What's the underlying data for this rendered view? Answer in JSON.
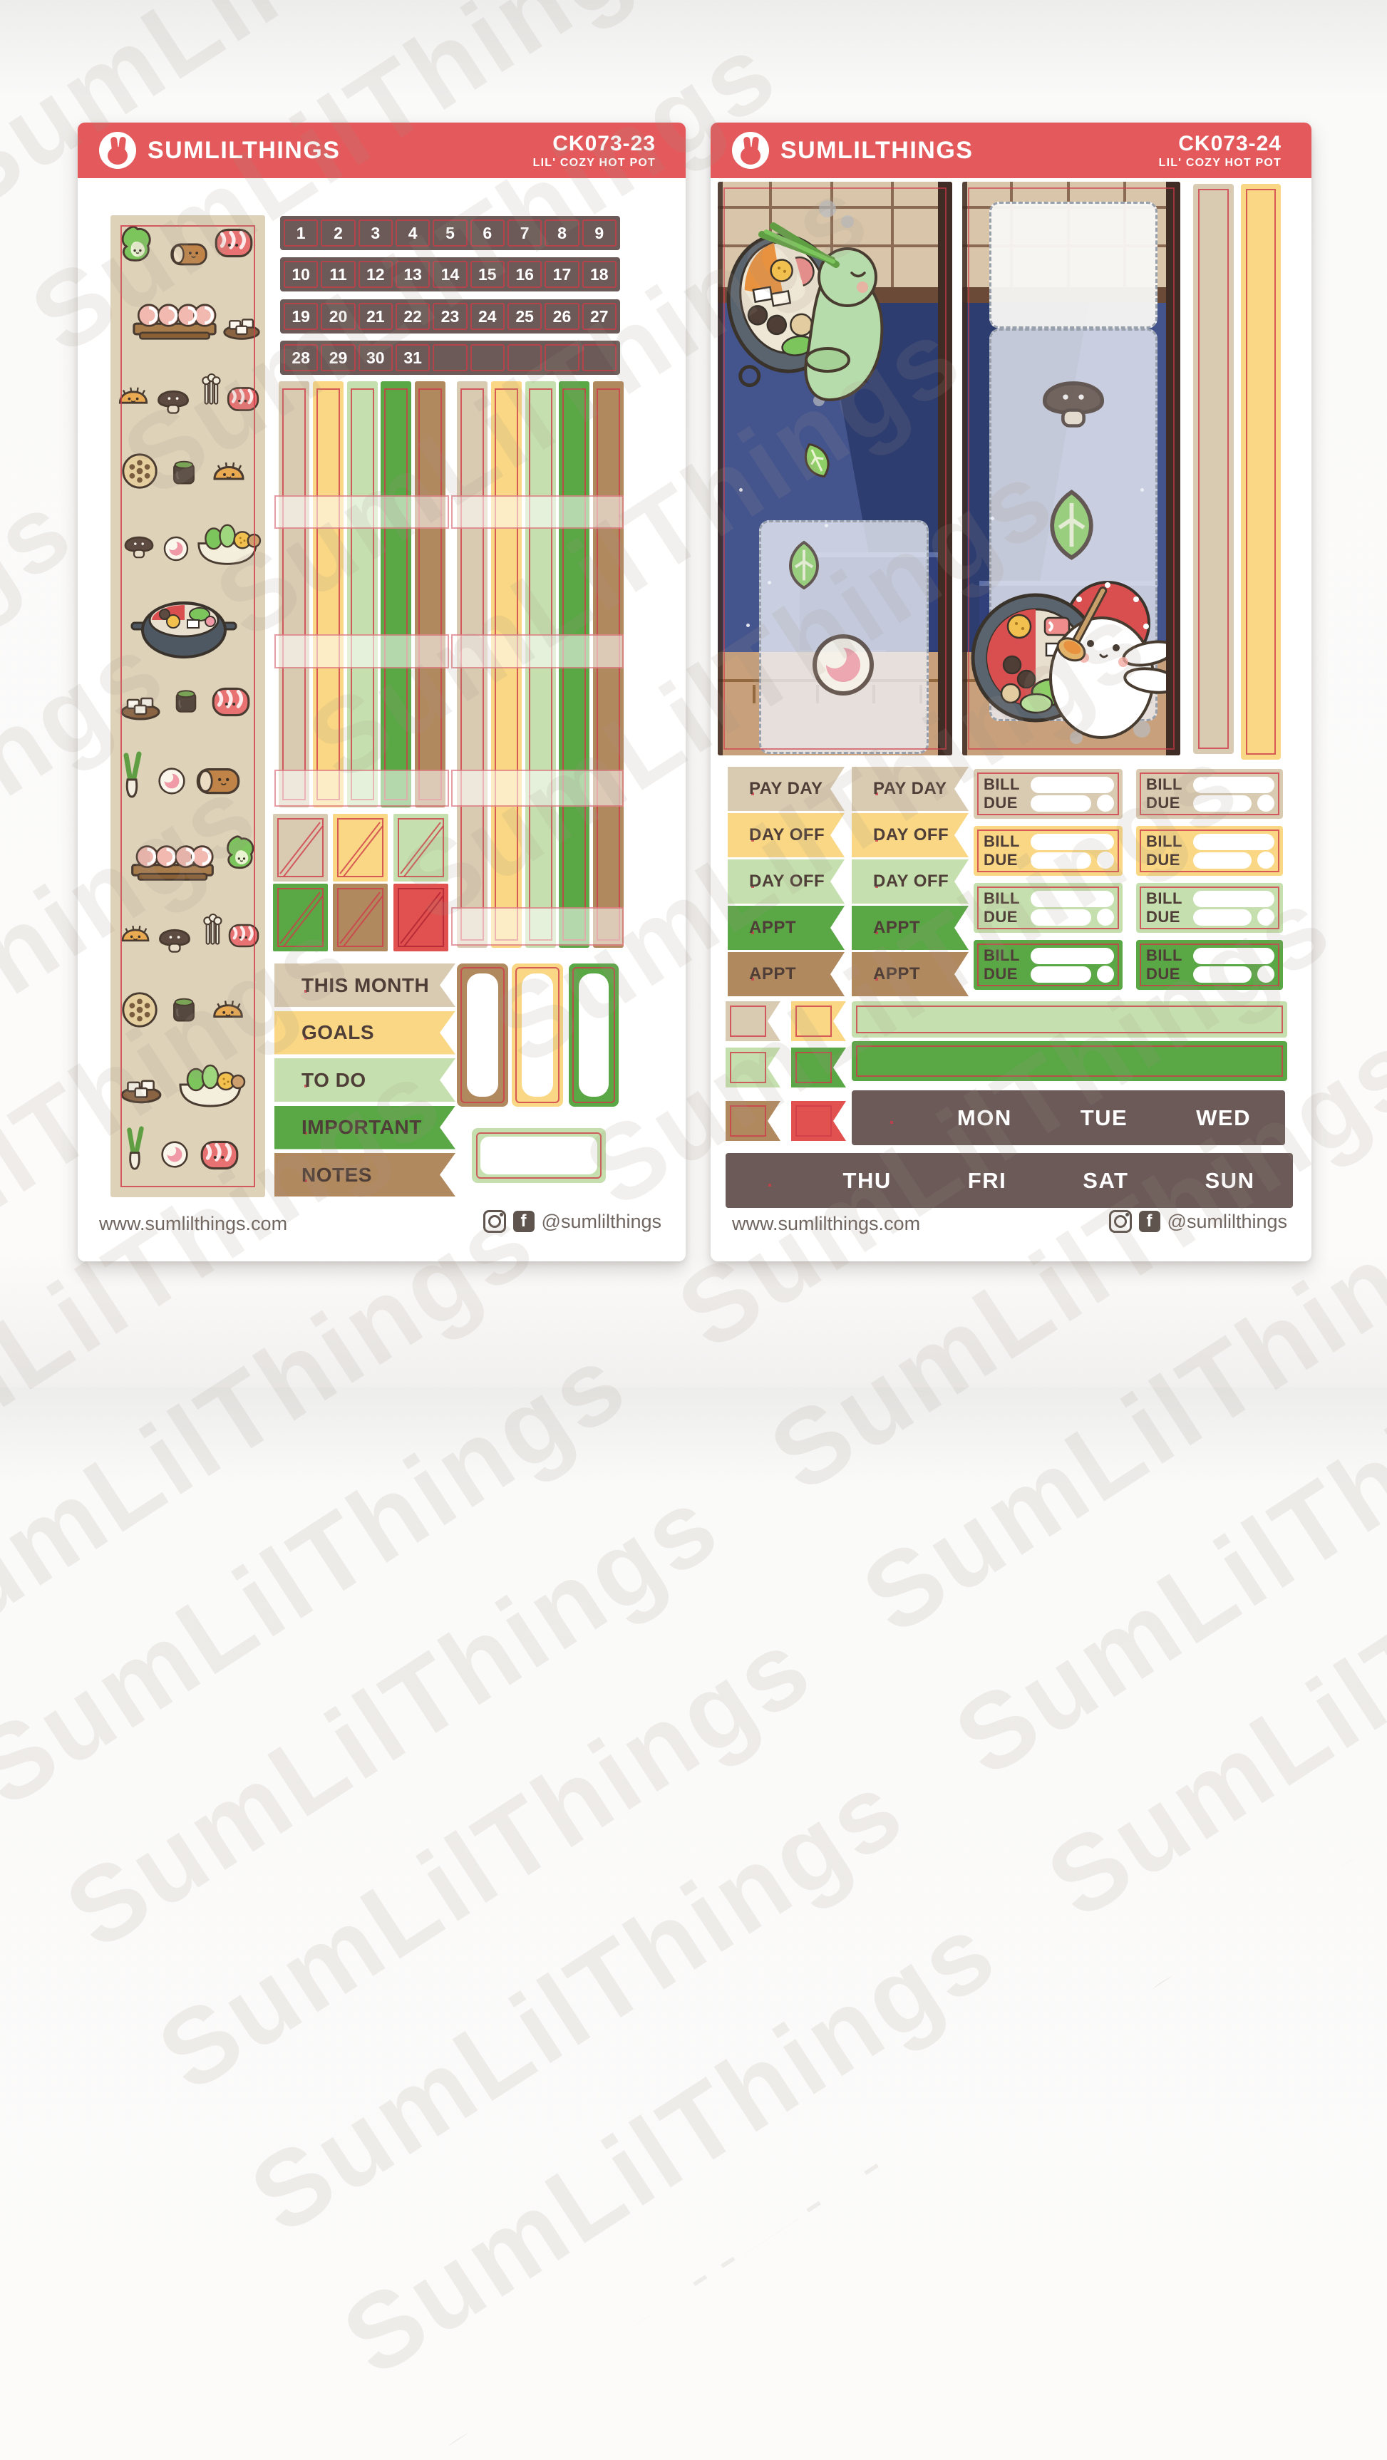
{
  "brand": "SUMLILTHINGS",
  "subtitle": "LIL' COZY HOT POT",
  "watermark": "SumLilThings",
  "logo_icon": "bunny",
  "footer": {
    "website": "www.sumlilthings.com",
    "handle": "@sumlilthings",
    "icons": [
      "instagram",
      "facebook"
    ]
  },
  "colors": {
    "header": "#e4595b",
    "cutline": "#ce3c48",
    "taupe": "#6b5a58",
    "tan": "#d9cbb2",
    "yellow": "#f9d784",
    "ltgreen": "#c5e0ae",
    "green": "#5aa746",
    "brown": "#b1895f",
    "red": "#e0514f",
    "washi": "#ded2b9",
    "textdark": "#4e3e37",
    "footer": "#6f6560",
    "navy": "#2d3d6f",
    "beamblue": "#4c5c97",
    "shoji": "#d9c6aa",
    "shojiline": "#8a6a52",
    "beamdark": "#6b4a38",
    "pillar": "#3f2c25",
    "floor": "#c8a07c",
    "floorline": "#92683f"
  },
  "sheet_left": {
    "code": "CK073-23",
    "date_rows": [
      [
        "1",
        "2",
        "3",
        "4",
        "5",
        "6",
        "7",
        "8",
        "9"
      ],
      [
        "10",
        "11",
        "12",
        "13",
        "14",
        "15",
        "16",
        "17",
        "18"
      ],
      [
        "19",
        "20",
        "21",
        "22",
        "23",
        "24",
        "25",
        "26",
        "27"
      ],
      [
        "28",
        "29",
        "30",
        "31",
        "",
        "",
        "",
        "",
        ""
      ]
    ],
    "section_flags": [
      {
        "label": "THIS MONTH",
        "color": "tan"
      },
      {
        "label": "GOALS",
        "color": "yellow"
      },
      {
        "label": "TO DO",
        "color": "ltgreen"
      },
      {
        "label": "IMPORTANT",
        "color": "green"
      },
      {
        "label": "NOTES",
        "color": "brown"
      }
    ]
  },
  "sheet_right": {
    "code": "CK073-24",
    "label_flags": [
      {
        "label": "PAY DAY",
        "color": "tan"
      },
      {
        "label": "PAY DAY",
        "color": "tan"
      },
      {
        "label": "DAY OFF",
        "color": "yellow"
      },
      {
        "label": "DAY OFF",
        "color": "yellow"
      },
      {
        "label": "DAY OFF",
        "color": "ltgreen"
      },
      {
        "label": "DAY OFF",
        "color": "ltgreen"
      },
      {
        "label": "APPT",
        "color": "green"
      },
      {
        "label": "APPT",
        "color": "green"
      },
      {
        "label": "APPT",
        "color": "brown"
      },
      {
        "label": "APPT",
        "color": "brown"
      }
    ],
    "bill_labels": {
      "bill": "BILL",
      "due": "DUE"
    },
    "weekdays_row1": [
      "MON",
      "TUE",
      "WED"
    ],
    "weekdays_row2": [
      "THU",
      "FRI",
      "SAT",
      "SUN"
    ]
  }
}
